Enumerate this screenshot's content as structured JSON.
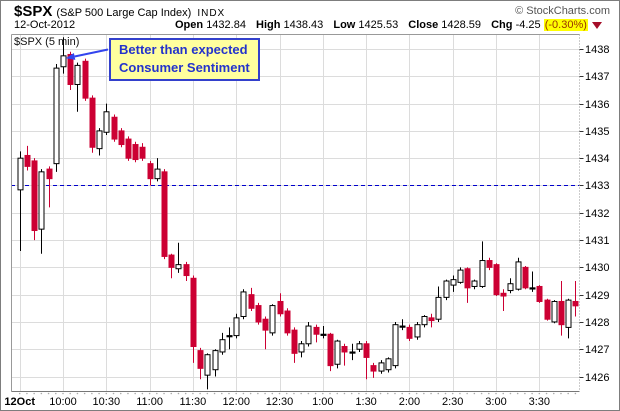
{
  "header": {
    "symbol": "$SPX",
    "name": "(S&P 500 Large Cap Index)",
    "exchange": "INDX",
    "credit": "© StockCharts.com",
    "date": "12-Oct-2012",
    "quote": {
      "open_label": "Open",
      "open": "1432.84",
      "high_label": "High",
      "high": "1438.43",
      "low_label": "Low",
      "low": "1425.53",
      "close_label": "Close",
      "close": "1428.59",
      "chg_label": "Chg",
      "chg": "-4.25",
      "chg_pct": "(-0.30%)"
    }
  },
  "chart": {
    "series_label": "$SPX (5 min)",
    "annotation": {
      "line1": "Better than expected",
      "line2": "Consumer Sentiment"
    }
  },
  "colors": {
    "up_fill": "#ffffff",
    "up_border": "#000000",
    "down": "#cc0033",
    "doji": "#000000",
    "grid": "#dcdcdc",
    "frame": "#999999",
    "tick": "#333333",
    "axis_text": "#000000",
    "dots": "#aaaaaa",
    "prev_close_line": "#0000cc",
    "arrow": "#3344ee",
    "chg_highlight": "#ffff00",
    "chg_pct_text": "#993300",
    "triangle": "#a50d28"
  },
  "chart_data": {
    "type": "candlestick",
    "title": "$SPX 5-minute intraday, 12-Oct-2012",
    "xlabel": "",
    "ylabel": "",
    "grid": true,
    "ylim": [
      1425.47,
      1438.55
    ],
    "y_ticks": [
      1438,
      1437,
      1436,
      1435,
      1434,
      1433,
      1432,
      1431,
      1430,
      1429,
      1428,
      1427,
      1426
    ],
    "prev_close": 1433,
    "x_labels": [
      {
        "text": "12Oct",
        "index": 0,
        "bold": true
      },
      {
        "text": "10:00",
        "index": 6,
        "bold": false
      },
      {
        "text": "10:30",
        "index": 12,
        "bold": false
      },
      {
        "text": "11:00",
        "index": 18,
        "bold": false
      },
      {
        "text": "11:30",
        "index": 24,
        "bold": false
      },
      {
        "text": "12:00",
        "index": 30,
        "bold": false
      },
      {
        "text": "12:30",
        "index": 36,
        "bold": false
      },
      {
        "text": "1:00",
        "index": 42,
        "bold": false
      },
      {
        "text": "1:30",
        "index": 48,
        "bold": false
      },
      {
        "text": "2:00",
        "index": 54,
        "bold": false
      },
      {
        "text": "2:30",
        "index": 60,
        "bold": false
      },
      {
        "text": "3:00",
        "index": 66,
        "bold": false
      },
      {
        "text": "3:30",
        "index": 72,
        "bold": false
      }
    ],
    "columns": [
      "time",
      "open",
      "high",
      "low",
      "close"
    ],
    "candles": [
      [
        "09:30",
        1432.84,
        1434.25,
        1430.6,
        1434.0
      ],
      [
        "09:35",
        1434.1,
        1434.45,
        1433.55,
        1433.7
      ],
      [
        "09:40",
        1433.9,
        1434.0,
        1431.0,
        1431.35
      ],
      [
        "09:45",
        1431.4,
        1433.6,
        1430.5,
        1433.5
      ],
      [
        "09:50",
        1433.6,
        1433.7,
        1432.2,
        1433.25
      ],
      [
        "09:55",
        1433.8,
        1437.45,
        1433.5,
        1437.3
      ],
      [
        "10:00",
        1437.35,
        1438.43,
        1437.1,
        1437.75
      ],
      [
        "10:05",
        1437.8,
        1437.9,
        1436.5,
        1436.7
      ],
      [
        "10:10",
        1436.7,
        1437.5,
        1435.7,
        1437.4
      ],
      [
        "10:15",
        1437.55,
        1437.65,
        1436.1,
        1436.2
      ],
      [
        "10:20",
        1436.2,
        1436.3,
        1434.2,
        1434.4
      ],
      [
        "10:25",
        1434.35,
        1435.1,
        1434.1,
        1435.0
      ],
      [
        "10:30",
        1434.95,
        1436.0,
        1434.85,
        1435.7
      ],
      [
        "10:35",
        1435.5,
        1435.6,
        1434.6,
        1434.7
      ],
      [
        "10:40",
        1435.0,
        1435.1,
        1434.4,
        1434.5
      ],
      [
        "10:45",
        1434.7,
        1434.8,
        1433.9,
        1434.0
      ],
      [
        "10:50",
        1434.5,
        1434.6,
        1433.85,
        1433.95
      ],
      [
        "10:55",
        1434.4,
        1434.55,
        1433.9,
        1434.0
      ],
      [
        "11:00",
        1433.8,
        1433.9,
        1433.0,
        1433.25
      ],
      [
        "11:05",
        1433.25,
        1434.0,
        1433.15,
        1433.6
      ],
      [
        "11:10",
        1433.5,
        1433.6,
        1430.3,
        1430.4
      ],
      [
        "11:15",
        1430.45,
        1430.5,
        1429.6,
        1430.0
      ],
      [
        "11:20",
        1429.95,
        1430.9,
        1429.8,
        1430.1
      ],
      [
        "11:25",
        1430.1,
        1430.2,
        1429.5,
        1429.7
      ],
      [
        "11:30",
        1429.6,
        1429.7,
        1426.5,
        1427.1
      ],
      [
        "11:35",
        1426.95,
        1427.05,
        1425.9,
        1426.3
      ],
      [
        "11:40",
        1426.05,
        1426.85,
        1425.53,
        1426.8
      ],
      [
        "11:45",
        1426.25,
        1427.0,
        1426.0,
        1426.95
      ],
      [
        "11:50",
        1426.9,
        1427.6,
        1426.8,
        1427.35
      ],
      [
        "11:55",
        1427.5,
        1427.8,
        1427.0,
        1427.5
      ],
      [
        "12:00",
        1427.5,
        1428.3,
        1427.4,
        1428.15
      ],
      [
        "12:05",
        1428.2,
        1429.2,
        1428.1,
        1429.1
      ],
      [
        "12:10",
        1429.0,
        1429.25,
        1428.4,
        1428.5
      ],
      [
        "12:15",
        1428.6,
        1428.7,
        1427.9,
        1428.0
      ],
      [
        "12:20",
        1428.1,
        1428.2,
        1427.0,
        1427.7
      ],
      [
        "12:25",
        1427.6,
        1428.65,
        1427.5,
        1428.6
      ],
      [
        "12:30",
        1428.75,
        1429.05,
        1428.2,
        1428.3
      ],
      [
        "12:35",
        1428.4,
        1428.5,
        1427.5,
        1427.6
      ],
      [
        "12:40",
        1427.7,
        1427.8,
        1426.5,
        1426.85
      ],
      [
        "12:45",
        1426.9,
        1427.3,
        1426.7,
        1427.2
      ],
      [
        "12:50",
        1427.2,
        1428.0,
        1427.1,
        1427.85
      ],
      [
        "12:55",
        1427.8,
        1427.9,
        1427.25,
        1427.55
      ],
      [
        "13:00",
        1427.55,
        1427.85,
        1427.4,
        1427.55
      ],
      [
        "13:05",
        1427.55,
        1427.6,
        1426.2,
        1426.4
      ],
      [
        "13:10",
        1426.45,
        1427.35,
        1426.3,
        1427.3
      ],
      [
        "13:15",
        1427.1,
        1427.2,
        1426.4,
        1426.9
      ],
      [
        "13:20",
        1426.9,
        1427.2,
        1426.6,
        1426.9
      ],
      [
        "13:25",
        1427.0,
        1427.3,
        1426.9,
        1427.2
      ],
      [
        "13:30",
        1427.2,
        1427.3,
        1425.9,
        1426.7
      ],
      [
        "13:35",
        1426.4,
        1426.5,
        1425.95,
        1426.2
      ],
      [
        "13:40",
        1426.2,
        1426.6,
        1426.1,
        1426.5
      ],
      [
        "13:45",
        1426.25,
        1426.7,
        1426.15,
        1426.65
      ],
      [
        "13:50",
        1426.4,
        1428.0,
        1426.3,
        1427.9
      ],
      [
        "13:55",
        1427.85,
        1428.1,
        1427.7,
        1427.85
      ],
      [
        "14:00",
        1427.8,
        1427.9,
        1427.3,
        1427.4
      ],
      [
        "14:05",
        1427.45,
        1428.0,
        1427.35,
        1427.9
      ],
      [
        "14:10",
        1427.9,
        1428.25,
        1427.8,
        1428.2
      ],
      [
        "14:15",
        1428.15,
        1428.3,
        1427.8,
        1428.05
      ],
      [
        "14:20",
        1428.1,
        1429.3,
        1428.0,
        1428.9
      ],
      [
        "14:25",
        1428.9,
        1429.55,
        1428.8,
        1429.5
      ],
      [
        "14:30",
        1429.35,
        1429.7,
        1429.1,
        1429.55
      ],
      [
        "14:35",
        1429.45,
        1430.0,
        1429.4,
        1429.9
      ],
      [
        "14:40",
        1429.95,
        1430.0,
        1428.7,
        1429.25
      ],
      [
        "14:45",
        1429.3,
        1429.55,
        1429.2,
        1429.5
      ],
      [
        "14:50",
        1429.3,
        1430.95,
        1429.25,
        1430.25
      ],
      [
        "14:55",
        1430.25,
        1430.35,
        1429.9,
        1430.0
      ],
      [
        "15:00",
        1430.1,
        1430.15,
        1428.95,
        1429.0
      ],
      [
        "15:05",
        1429.05,
        1429.2,
        1428.4,
        1428.95
      ],
      [
        "15:10",
        1429.15,
        1429.6,
        1429.05,
        1429.4
      ],
      [
        "15:15",
        1429.2,
        1430.35,
        1429.15,
        1430.2
      ],
      [
        "15:20",
        1430.0,
        1430.05,
        1429.2,
        1429.25
      ],
      [
        "15:25",
        1429.25,
        1429.85,
        1429.1,
        1429.25
      ],
      [
        "15:30",
        1429.3,
        1429.35,
        1428.7,
        1428.75
      ],
      [
        "15:35",
        1428.8,
        1428.85,
        1428.05,
        1428.1
      ],
      [
        "15:40",
        1428.0,
        1428.8,
        1427.95,
        1428.75
      ],
      [
        "15:45",
        1428.75,
        1429.5,
        1427.5,
        1427.9
      ],
      [
        "15:50",
        1427.8,
        1428.85,
        1427.4,
        1428.8
      ],
      [
        "15:55",
        1428.75,
        1429.5,
        1428.2,
        1428.59
      ]
    ]
  }
}
